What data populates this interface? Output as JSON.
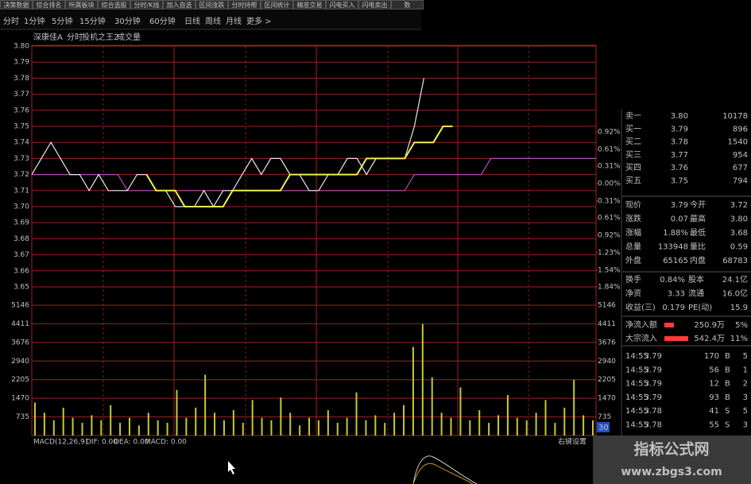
{
  "toolbar": [
    "决策数据",
    "综合排名",
    "所属板块",
    "综合选股",
    "分时/K线",
    "加入自选",
    "区间涨跌",
    "分时持帮",
    "区间统计",
    "精准交易",
    "闪电买入",
    "闪电卖出",
    "数"
  ],
  "tabs": [
    "分时",
    "1分钟",
    "5分钟",
    "15分钟",
    "30分钟",
    "60分钟",
    "日线",
    "周线",
    "月线",
    "更多 >"
  ],
  "chart_header": {
    "stock": "深康佳A",
    "mode": "分时",
    "indicator": "投机之王2",
    "volume_label": "成交量"
  },
  "chart_data": [
    {
      "type": "line",
      "ylim": [
        3.65,
        3.8
      ],
      "yticks": [
        {
          "value": 3.8,
          "label": "3.80"
        },
        3.79,
        3.78,
        3.77,
        3.76,
        3.75,
        3.74,
        3.73,
        3.72,
        3.71,
        {
          "value": 3.7,
          "label": "3.70"
        },
        3.69,
        3.68,
        3.67,
        3.66,
        3.65
      ],
      "y2lim": [
        -1.84,
        2.45
      ],
      "y2ticks": [
        {
          "value": 0.92,
          "label": "0.92%"
        },
        {
          "value": 0.61,
          "label": "0.61%"
        },
        {
          "value": 0.31,
          "label": "0.31%"
        },
        {
          "value": 0,
          "label": "0.00%"
        },
        {
          "value": -0.31,
          "label": "0.31%"
        },
        {
          "value": -0.61,
          "label": "0.61%"
        },
        {
          "value": -0.92,
          "label": "0.92%"
        },
        {
          "value": -1.23,
          "label": "1.23%"
        },
        {
          "value": -1.54,
          "label": "1.54%"
        },
        {
          "value": -1.84,
          "label": "1.84%"
        }
      ],
      "grid": true,
      "series": [
        {
          "color": "#b04db0",
          "values": [
            3.72,
            3.72,
            3.72,
            3.72,
            3.72,
            3.72,
            3.72,
            3.72,
            3.72,
            3.72,
            3.71,
            3.71,
            3.71,
            3.71,
            3.71,
            3.71,
            3.71,
            3.71,
            3.71,
            3.71,
            3.71,
            3.71,
            3.71,
            3.71,
            3.71,
            3.71,
            3.71,
            3.71,
            3.71,
            3.71,
            3.71,
            3.71,
            3.71,
            3.71,
            3.71,
            3.71,
            3.71,
            3.71,
            3.71,
            3.71,
            3.72,
            3.72,
            3.72,
            3.72,
            3.72,
            3.72,
            3.72,
            3.72,
            3.73,
            3.73,
            3.73,
            3.73,
            3.73,
            3.73,
            3.73,
            3.73,
            3.73,
            3.73,
            3.73,
            3.73
          ]
        },
        {
          "color": "#e8e8e8",
          "values": [
            3.72,
            3.73,
            3.74,
            3.73,
            3.72,
            3.72,
            3.71,
            3.72,
            3.71,
            3.71,
            3.71,
            3.72,
            3.72,
            3.71,
            3.71,
            3.7,
            3.7,
            3.7,
            3.71,
            3.7,
            3.71,
            3.71,
            3.72,
            3.73,
            3.72,
            3.73,
            3.73,
            3.72,
            3.72,
            3.71,
            3.71,
            3.72,
            3.72,
            3.73,
            3.73,
            3.72,
            3.73,
            3.73,
            3.73,
            3.73,
            3.75,
            3.78,
            null,
            null,
            null,
            null,
            null,
            null,
            null,
            null,
            null,
            null,
            null,
            null,
            null,
            null,
            null,
            null,
            null,
            null
          ]
        },
        {
          "color": "#f0f050",
          "values": [
            null,
            null,
            null,
            null,
            null,
            null,
            null,
            null,
            null,
            null,
            null,
            null,
            3.72,
            3.71,
            3.71,
            3.71,
            3.7,
            3.7,
            3.7,
            3.7,
            3.7,
            3.71,
            3.71,
            3.71,
            3.71,
            3.71,
            3.71,
            3.72,
            3.72,
            3.72,
            3.72,
            3.72,
            3.72,
            3.72,
            3.72,
            3.73,
            3.73,
            3.73,
            3.73,
            3.73,
            3.74,
            3.74,
            3.74,
            3.75,
            3.75,
            null,
            null,
            null,
            null,
            null,
            null,
            null,
            null,
            null,
            null,
            null,
            null,
            null,
            null,
            null
          ]
        }
      ]
    },
    {
      "type": "bar",
      "color": "#c8c832",
      "ylim": [
        0,
        5146
      ],
      "yticks": [
        735,
        1470,
        2205,
        2940,
        3676,
        4411,
        5146
      ],
      "grid": true,
      "values": [
        1300,
        900,
        600,
        1100,
        700,
        500,
        800,
        600,
        1200,
        500,
        700,
        400,
        900,
        600,
        500,
        1800,
        700,
        1100,
        2400,
        900,
        600,
        1000,
        500,
        1400,
        700,
        600,
        1500,
        900,
        400,
        700,
        600,
        1000,
        500,
        700,
        1700,
        600,
        800,
        500,
        900,
        1200,
        3500,
        4400,
        2300,
        900,
        700,
        1900,
        600,
        1000,
        500,
        800,
        1600,
        700,
        600,
        900,
        1400,
        500,
        1100,
        2200,
        800,
        600
      ]
    }
  ],
  "macd": {
    "label": "MACD(12,26,9)",
    "dif": "DIF: 0.00",
    "dea": "DEA: 0.00",
    "macd": "MACD: 0.00",
    "settings": "右键设置"
  },
  "period_badge": "30",
  "order_book": [
    [
      "卖一",
      "3.80",
      "10178"
    ],
    [
      "买一",
      "3.79",
      "896"
    ],
    [
      "买二",
      "3.78",
      "1540"
    ],
    [
      "买三",
      "3.77",
      "954"
    ],
    [
      "买四",
      "3.76",
      "677"
    ],
    [
      "买五",
      "3.75",
      "794"
    ]
  ],
  "quote": [
    [
      "现价",
      "3.79",
      "今开",
      "3.72"
    ],
    [
      "涨跌",
      "0.07",
      "最高",
      "3.80"
    ],
    [
      "涨幅",
      "1.88%",
      "最低",
      "3.68"
    ],
    [
      "总量",
      "133948",
      "量比",
      "0.59"
    ],
    [
      "外盘",
      "65165",
      "内盘",
      "68783"
    ]
  ],
  "stats": [
    [
      "换手",
      "0.84%",
      "股本",
      "24.1亿"
    ],
    [
      "净资",
      "3.33",
      "流通",
      "16.0亿"
    ],
    [
      "收益(三)",
      "0.179",
      "PE(动)",
      "15.9"
    ]
  ],
  "flows": [
    [
      "净流入额",
      "250.9万",
      "5%"
    ],
    [
      "大宗流入",
      "542.4万",
      "11%"
    ]
  ],
  "trades": [
    [
      "14:55",
      "3.79",
      "170",
      "B",
      "5"
    ],
    [
      "14:55",
      "3.79",
      "56",
      "B",
      "1"
    ],
    [
      "14:55",
      "3.79",
      "12",
      "B",
      "2"
    ],
    [
      "14:55",
      "3.79",
      "93",
      "B",
      "3"
    ],
    [
      "14:55",
      "3.78",
      "41",
      "S",
      "5"
    ],
    [
      "14:55",
      "3.78",
      "55",
      "S",
      "3"
    ]
  ],
  "watermark": {
    "title": "指标公式网",
    "url": "www.zbgs3.com"
  }
}
